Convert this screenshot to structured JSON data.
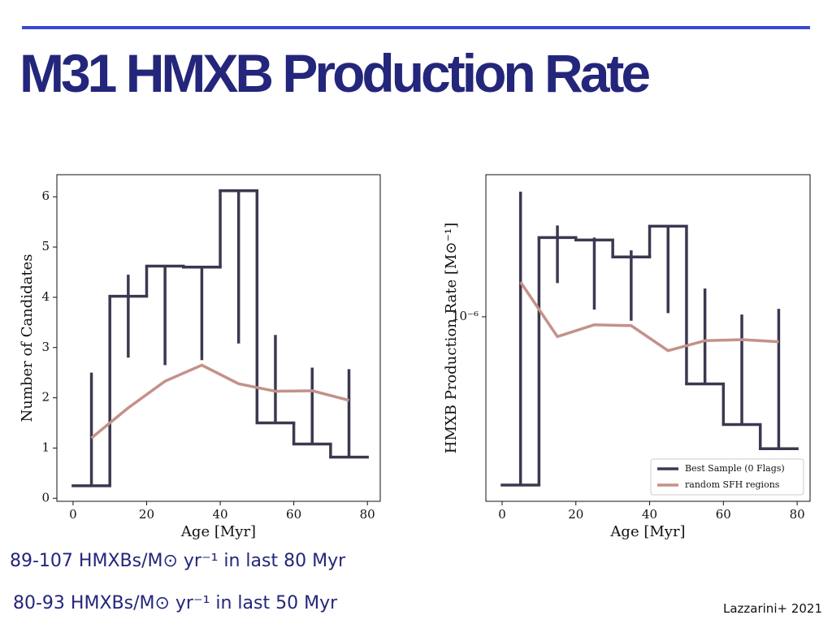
{
  "title": "M31 HMXB Production Rate",
  "notes": [
    "89-107 HMXBs/M⊙ yr⁻¹ in last 80 Myr",
    "80-93 HMXBs/M⊙ yr⁻¹ in last 50 Myr"
  ],
  "credit": "Lazzarini+ 2021",
  "chart_data": [
    {
      "type": "step",
      "xlabel": "Age [Myr]",
      "ylabel": "Number of Candidates",
      "xlim": [
        -4.4,
        83.5
      ],
      "xticks": [
        0,
        20,
        40,
        60,
        80
      ],
      "ylim": [
        -0.06,
        6.44
      ],
      "yticks": [
        0,
        1,
        2,
        3,
        4,
        5,
        6
      ],
      "ylog": false,
      "series": [
        {
          "type": "step",
          "color": "#3b3950",
          "bins": [
            0,
            10,
            20,
            30,
            40,
            50,
            60,
            70,
            80
          ],
          "values": [
            0.25,
            4.02,
            4.62,
            4.6,
            6.12,
            1.5,
            1.08,
            0.82
          ],
          "error_low": [
            0.25,
            2.8,
            2.65,
            2.75,
            3.08,
            1.5,
            1.08,
            0.82
          ],
          "error_high": [
            2.5,
            4.45,
            4.6,
            4.6,
            6.12,
            3.25,
            2.6,
            2.57
          ]
        },
        {
          "type": "line",
          "color": "#c4918a",
          "x": [
            5,
            15,
            25,
            35,
            45,
            55,
            65,
            75
          ],
          "values": [
            1.2,
            1.8,
            2.33,
            2.65,
            2.28,
            2.13,
            2.14,
            1.95
          ]
        }
      ]
    },
    {
      "type": "step",
      "xlabel": "Age [Myr]",
      "ylabel": "HMXB Production Rate [M⊙⁻¹]",
      "xlim": [
        -4.4,
        83.5
      ],
      "xticks": [
        0,
        20,
        40,
        60,
        80
      ],
      "ylim": [
        8.8e-08,
        6.5e-06
      ],
      "yticks": [
        {
          "value": 1e-06,
          "label": "10⁻⁶"
        }
      ],
      "ylog": true,
      "legend": "lower right",
      "series": [
        {
          "type": "step",
          "name": "Best Sample (0 Flags)",
          "color": "#3b3950",
          "bins": [
            0,
            10,
            20,
            30,
            40,
            50,
            60,
            70,
            80
          ],
          "values": [
            1.09e-07,
            2.84e-06,
            2.75e-06,
            2.2e-06,
            3.3e-06,
            4.13e-07,
            2.42e-07,
            1.76e-07
          ],
          "error_low": [
            1.09e-07,
            1.56e-06,
            1.1e-06,
            9.5e-07,
            1.05e-06,
            4.17e-07,
            2.42e-07,
            1.76e-07
          ],
          "error_high": [
            5.2e-06,
            3.33e-06,
            2.84e-06,
            2.4e-06,
            3.3e-06,
            1.45e-06,
            1.03e-06,
            1.11e-06
          ]
        },
        {
          "type": "line",
          "name": "random SFH regions",
          "color": "#c4918a",
          "x": [
            5,
            15,
            25,
            35,
            45,
            55,
            65,
            75
          ],
          "values": [
            1.58e-06,
            7.7e-07,
            9e-07,
            8.9e-07,
            6.4e-07,
            7.3e-07,
            7.4e-07,
            7.2e-07
          ]
        }
      ]
    }
  ]
}
